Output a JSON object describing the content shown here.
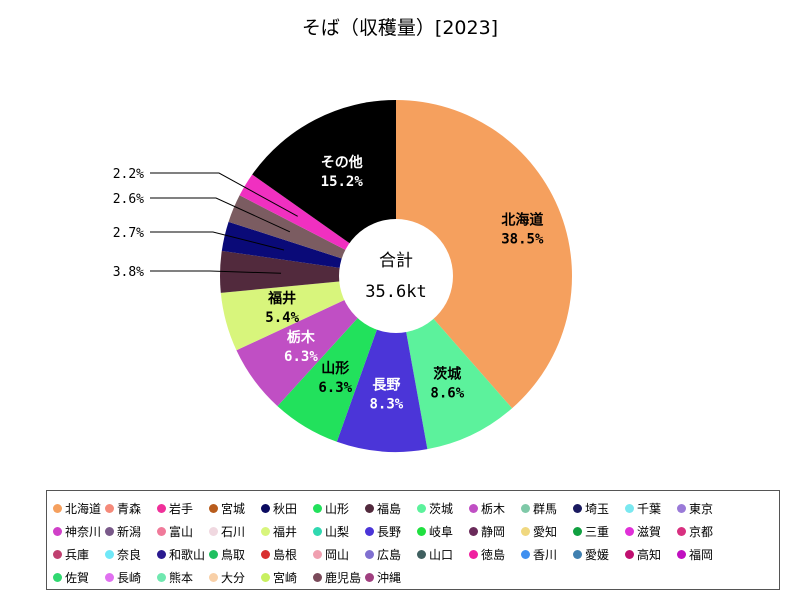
{
  "chart_data": {
    "type": "donut",
    "title": "そば（収穫量）[2023]",
    "center_label": "合計",
    "center_value": "35.6kt",
    "slices": [
      {
        "name": "北海道",
        "value": 38.5,
        "label": "38.5%",
        "color": "#f5a05e",
        "label_color": "#000000"
      },
      {
        "name": "茨城",
        "value": 8.6,
        "label": "8.6%",
        "color": "#5cf29c",
        "label_color": "#000000"
      },
      {
        "name": "長野",
        "value": 8.3,
        "label": "8.3%",
        "color": "#4b35d8",
        "label_color": "#ffffff"
      },
      {
        "name": "山形",
        "value": 6.3,
        "label": "6.3%",
        "color": "#22e15c",
        "label_color": "#000000"
      },
      {
        "name": "栃木",
        "value": 6.3,
        "label": "6.3%",
        "color": "#c04fc4",
        "label_color": "#ffffff"
      },
      {
        "name": "福井",
        "value": 5.4,
        "label": "5.4%",
        "color": "#d8f57c",
        "label_color": "#000000"
      },
      {
        "name": "",
        "value": 3.8,
        "label": "3.8%",
        "color": "#522a3d",
        "label_color": "#000000"
      },
      {
        "name": "",
        "value": 2.7,
        "label": "2.7%",
        "color": "#0a0a78",
        "label_color": "#000000"
      },
      {
        "name": "",
        "value": 2.6,
        "label": "2.6%",
        "color": "#7b5c61",
        "label_color": "#000000"
      },
      {
        "name": "",
        "value": 2.2,
        "label": "2.2%",
        "color": "#f030c0",
        "label_color": "#000000"
      },
      {
        "name": "その他",
        "value": 15.2,
        "label": "15.2%",
        "color": "#000000",
        "label_color": "#ffffff"
      }
    ],
    "legend": [
      {
        "name": "北海道",
        "color": "#f5a05e"
      },
      {
        "name": "青森",
        "color": "#f58a7a"
      },
      {
        "name": "岩手",
        "color": "#f0309a"
      },
      {
        "name": "宮城",
        "color": "#b85c1c"
      },
      {
        "name": "秋田",
        "color": "#0a0a60"
      },
      {
        "name": "山形",
        "color": "#22e15c"
      },
      {
        "name": "福島",
        "color": "#522a3d"
      },
      {
        "name": "茨城",
        "color": "#5cf29c"
      },
      {
        "name": "栃木",
        "color": "#c04fc4"
      },
      {
        "name": "群馬",
        "color": "#7fc9a8"
      },
      {
        "name": "埼玉",
        "color": "#1a1a60"
      },
      {
        "name": "千葉",
        "color": "#7ae8f0"
      },
      {
        "name": "東京",
        "color": "#9a7ad8"
      },
      {
        "name": "神奈川",
        "color": "#d040c8"
      },
      {
        "name": "新潟",
        "color": "#7a5a8a"
      },
      {
        "name": "富山",
        "color": "#f07a9a"
      },
      {
        "name": "石川",
        "color": "#f0d8e0"
      },
      {
        "name": "福井",
        "color": "#d8f57c"
      },
      {
        "name": "山梨",
        "color": "#30d8b0"
      },
      {
        "name": "長野",
        "color": "#4b35d8"
      },
      {
        "name": "岐阜",
        "color": "#20e040"
      },
      {
        "name": "静岡",
        "color": "#6a2a5a"
      },
      {
        "name": "愛知",
        "color": "#f0d880"
      },
      {
        "name": "三重",
        "color": "#10a040"
      },
      {
        "name": "滋賀",
        "color": "#e030d8"
      },
      {
        "name": "京都",
        "color": "#d83080"
      },
      {
        "name": "兵庫",
        "color": "#c04070"
      },
      {
        "name": "奈良",
        "color": "#70e8f8"
      },
      {
        "name": "和歌山",
        "color": "#2a1a90"
      },
      {
        "name": "鳥取",
        "color": "#20c060"
      },
      {
        "name": "島根",
        "color": "#d83030"
      },
      {
        "name": "岡山",
        "color": "#f0a0b0"
      },
      {
        "name": "広島",
        "color": "#8070d0"
      },
      {
        "name": "山口",
        "color": "#406060"
      },
      {
        "name": "徳島",
        "color": "#f020a0"
      },
      {
        "name": "香川",
        "color": "#4090f0"
      },
      {
        "name": "愛媛",
        "color": "#4080b0"
      },
      {
        "name": "高知",
        "color": "#c01070"
      },
      {
        "name": "福岡",
        "color": "#c010c0"
      },
      {
        "name": "佐賀",
        "color": "#30d870"
      },
      {
        "name": "長崎",
        "color": "#e070f0"
      },
      {
        "name": "熊本",
        "color": "#70e8b0"
      },
      {
        "name": "大分",
        "color": "#f8d0a8"
      },
      {
        "name": "宮崎",
        "color": "#c8f060"
      },
      {
        "name": "鹿児島",
        "color": "#7a4a5a"
      },
      {
        "name": "沖縄",
        "color": "#a04080"
      }
    ]
  }
}
